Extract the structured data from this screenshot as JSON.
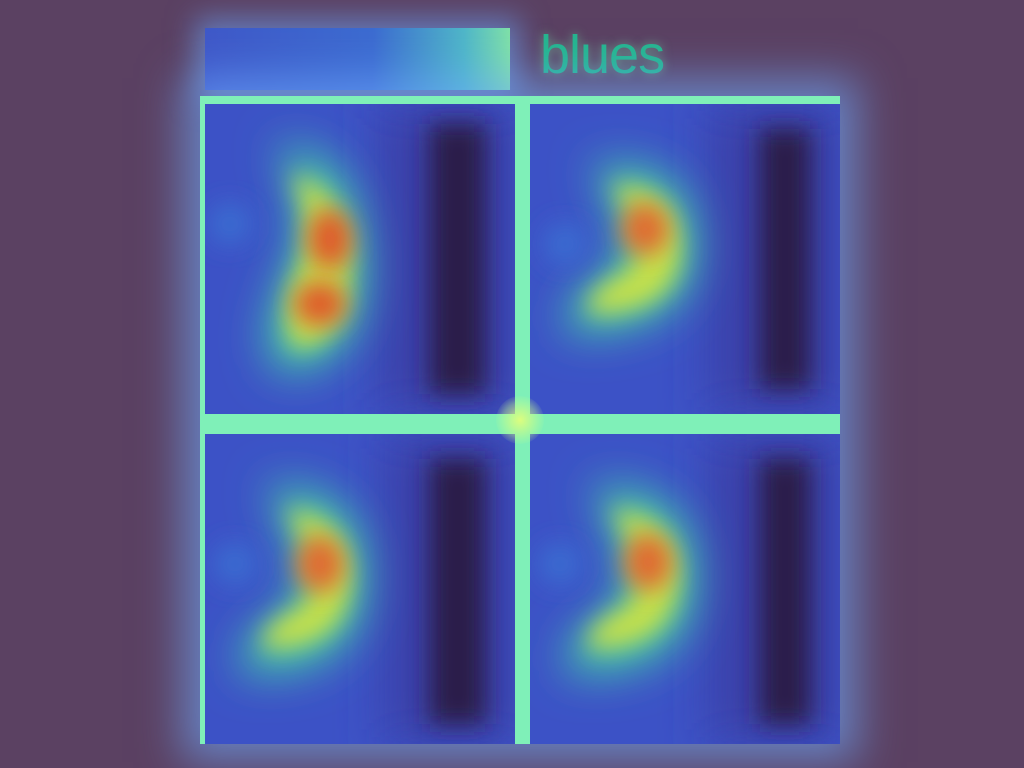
{
  "title": "blues",
  "colors": {
    "background": "#5b4162",
    "title": "#25b58e",
    "grid_lines": "#7ff0b8",
    "panel_base": "#3c52c6",
    "dark_band": "#2a1a4a",
    "hot_spot": "#e05a2a"
  },
  "panels": [
    {
      "position": "top-left",
      "peak": "strong"
    },
    {
      "position": "top-right",
      "peak": "medium"
    },
    {
      "position": "bottom-left",
      "peak": "medium"
    },
    {
      "position": "bottom-right",
      "peak": "medium"
    }
  ]
}
